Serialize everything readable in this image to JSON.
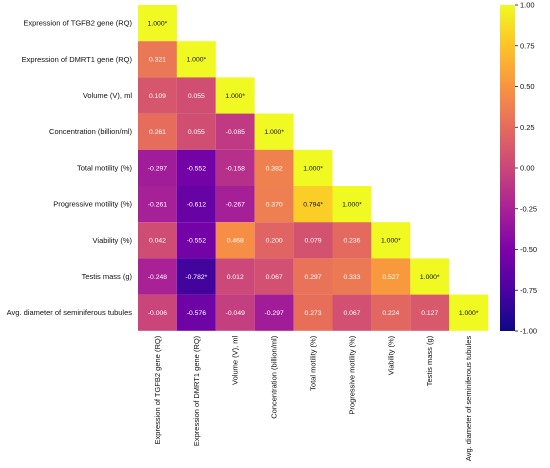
{
  "chart_data": {
    "type": "heatmap",
    "title": "",
    "xlabel": "",
    "ylabel": "",
    "row_labels": [
      "Expression of TGFB2 gene (RQ)",
      "Expression of DMRT1 gene (RQ)",
      "Volume (V), ml",
      "Concentration (billion/ml)",
      "Total motility (%)",
      "Progressive motility (%)",
      "Viability (%)",
      "Testis mass (g)",
      "Avg. diameter of seminiferous tubules"
    ],
    "col_labels": [
      "Expression of TGFB2 gene (RQ)",
      "Expression of DMRT1 gene (RQ)",
      "Volume (V), ml",
      "Concentration (billion/ml)",
      "Total motility (%)",
      "Progressive motility (%)",
      "Viability (%)",
      "Testis mass (g)",
      "Avg. diameter of seminiferous tubules"
    ],
    "cells": [
      [
        "1.000*"
      ],
      [
        "0.321",
        "1.000*"
      ],
      [
        "0.109",
        "0.055",
        "1.000*"
      ],
      [
        "0.261",
        "0.055",
        "-0.085",
        "1.000*"
      ],
      [
        "-0.297",
        "-0.552",
        "-0.158",
        "0.382",
        "1.000*"
      ],
      [
        "-0.261",
        "-0.612",
        "-0.267",
        "0.370",
        "0.794*",
        "1.000*"
      ],
      [
        "0.042",
        "-0.552",
        "0.468",
        "0.200",
        "0.079",
        "0.236",
        "1.000*"
      ],
      [
        "-0.248",
        "-0.782*",
        "0.012",
        "0.067",
        "0.297",
        "0.333",
        "0.527",
        "1.000*"
      ],
      [
        "-0.006",
        "-0.576",
        "-0.049",
        "-0.297",
        "0.273",
        "0.067",
        "0.224",
        "0.127",
        "1.000*"
      ]
    ],
    "value_range": [
      -1.0,
      1.0
    ],
    "colormap": "plasma",
    "colorbar_ticks": [
      "1.00",
      "0.75",
      "0.50",
      "0.25",
      "0.00",
      "-0.25",
      "-0.50",
      "-0.75",
      "-1.00"
    ]
  },
  "colors": {
    "background": "#ffffff",
    "text_dark": "#111111",
    "cell_text_light": "#ffffff",
    "cell_text_dark": "#111111"
  }
}
